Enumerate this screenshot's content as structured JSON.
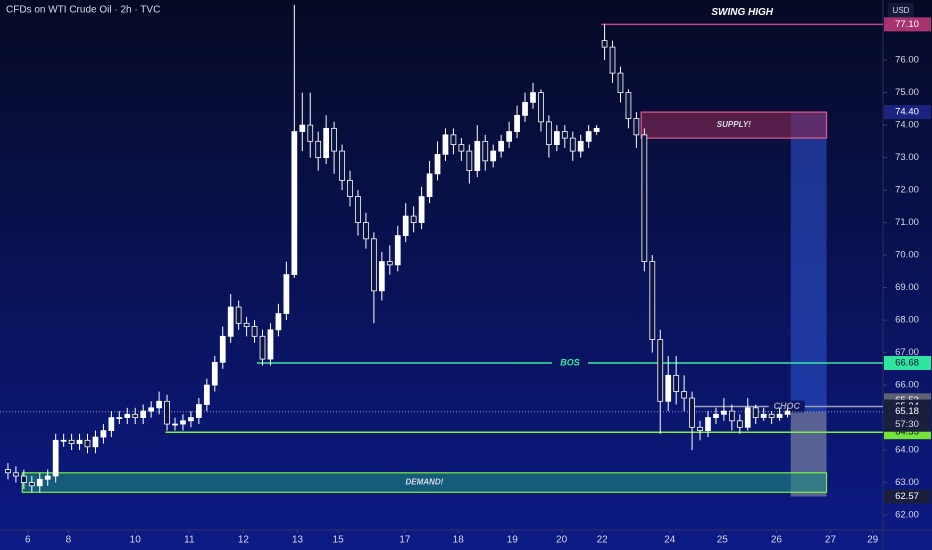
{
  "chart_data": {
    "type": "candlestick",
    "title": "CFDs on WTI Crude Oil · 2h · TVC",
    "currency": "USD",
    "up_color": "#ffffff",
    "down_color": "#0c1440",
    "open": [
      63.4,
      63.3,
      63.2,
      63.0,
      62.9,
      63.1,
      63.2,
      64.3,
      64.3,
      64.2,
      64.3,
      64.1,
      64.4,
      64.6,
      65.0,
      65.0,
      65.1,
      65.0,
      65.2,
      65.3,
      65.5,
      64.8,
      64.8,
      64.9,
      65.0,
      65.4,
      66.0,
      66.7,
      67.5,
      68.4,
      67.9,
      67.8,
      67.5,
      66.8,
      67.7,
      68.2,
      69.4,
      73.8,
      74.0,
      73.5,
      73.0,
      73.9,
      73.2,
      72.3,
      71.8,
      71.0,
      70.5,
      68.9,
      69.8,
      69.7,
      70.6,
      71.2,
      71.0,
      71.8,
      72.5,
      73.1,
      73.7,
      73.4,
      73.2,
      72.6,
      73.5,
      72.9,
      73.2,
      73.5,
      73.8,
      74.3,
      74.7,
      75.0,
      74.1,
      73.4,
      73.8,
      73.6,
      73.2,
      73.5,
      73.8,
      76.6,
      76.4,
      75.6,
      75.0,
      74.2,
      73.7,
      69.8,
      67.4,
      65.5,
      66.3,
      65.8,
      65.6,
      64.7,
      64.6,
      65.0,
      65.1,
      65.2,
      64.9,
      64.7,
      65.3,
      65.0,
      65.1,
      65.0,
      65.1
    ],
    "high": [
      63.6,
      63.5,
      63.4,
      63.2,
      63.3,
      63.4,
      64.5,
      64.5,
      64.5,
      64.5,
      64.5,
      64.6,
      64.8,
      65.2,
      65.2,
      65.3,
      65.3,
      65.4,
      65.5,
      65.8,
      65.7,
      65.0,
      65.1,
      65.2,
      65.6,
      66.2,
      66.9,
      67.8,
      68.8,
      68.6,
      68.1,
      68.0,
      67.7,
      67.9,
      68.5,
      69.8,
      77.7,
      75.0,
      75.0,
      73.8,
      74.3,
      74.1,
      73.4,
      72.6,
      72.0,
      71.3,
      70.7,
      70.1,
      70.3,
      70.9,
      71.6,
      71.5,
      72.1,
      72.9,
      73.5,
      73.9,
      73.9,
      73.6,
      73.4,
      74.0,
      73.7,
      73.4,
      73.7,
      74.1,
      74.6,
      75.0,
      75.3,
      75.1,
      74.3,
      74.0,
      74.0,
      73.8,
      73.7,
      74.0,
      74.0,
      77.1,
      76.6,
      75.8,
      75.1,
      74.4,
      73.9,
      70.0,
      67.7,
      66.9,
      66.9,
      66.3,
      65.8,
      64.9,
      65.2,
      65.3,
      65.6,
      65.4,
      65.1,
      65.6,
      65.4,
      65.3,
      65.2,
      65.3,
      65.3
    ],
    "low": [
      63.1,
      63.0,
      62.8,
      62.7,
      62.7,
      62.9,
      63.0,
      64.1,
      64.0,
      64.0,
      63.9,
      63.9,
      64.2,
      64.4,
      64.8,
      64.8,
      64.8,
      64.8,
      65.0,
      65.1,
      64.6,
      64.6,
      64.6,
      64.7,
      64.8,
      65.2,
      65.8,
      66.5,
      67.3,
      67.7,
      67.5,
      67.3,
      66.6,
      66.6,
      67.5,
      68.0,
      69.3,
      73.2,
      73.0,
      72.6,
      72.8,
      72.5,
      72.0,
      71.5,
      70.6,
      70.2,
      67.9,
      68.6,
      69.4,
      69.5,
      70.4,
      70.7,
      70.8,
      71.6,
      72.3,
      72.9,
      73.1,
      72.9,
      72.2,
      72.4,
      72.6,
      72.7,
      73.0,
      73.3,
      73.6,
      74.1,
      74.5,
      73.8,
      73.0,
      73.2,
      73.3,
      72.9,
      73.0,
      73.3,
      73.7,
      76.0,
      75.3,
      74.7,
      73.9,
      73.3,
      69.5,
      67.0,
      64.5,
      65.2,
      65.4,
      65.2,
      64.0,
      64.3,
      64.4,
      64.8,
      64.9,
      64.6,
      64.5,
      64.6,
      64.8,
      64.9,
      64.8,
      64.9,
      65.0
    ],
    "close": [
      63.3,
      63.2,
      63.0,
      62.9,
      63.1,
      63.2,
      64.3,
      64.3,
      64.2,
      64.3,
      64.1,
      64.4,
      64.6,
      65.0,
      65.0,
      65.1,
      65.0,
      65.2,
      65.3,
      65.5,
      64.8,
      64.8,
      64.9,
      65.0,
      65.4,
      66.0,
      66.7,
      67.5,
      68.4,
      67.9,
      67.8,
      67.5,
      66.8,
      67.7,
      68.2,
      69.4,
      73.8,
      74.0,
      73.5,
      73.0,
      73.9,
      73.2,
      72.3,
      71.8,
      71.0,
      70.5,
      68.9,
      69.8,
      69.7,
      70.6,
      71.2,
      71.0,
      71.8,
      72.5,
      73.1,
      73.7,
      73.4,
      73.2,
      72.6,
      73.5,
      72.9,
      73.2,
      73.5,
      73.8,
      74.3,
      74.7,
      75.0,
      74.1,
      73.4,
      73.8,
      73.6,
      73.2,
      73.5,
      73.8,
      73.9,
      76.4,
      75.6,
      75.0,
      74.2,
      73.7,
      69.8,
      67.4,
      65.5,
      66.3,
      65.8,
      65.6,
      64.7,
      64.6,
      65.0,
      65.1,
      65.2,
      64.9,
      64.7,
      65.3,
      65.0,
      65.1,
      65.0,
      65.1,
      65.2
    ],
    "xlim": [
      -1,
      110
    ],
    "xticks": [
      {
        "value": 2.5,
        "label": "6"
      },
      {
        "value": 7.6,
        "label": "8"
      },
      {
        "value": 16,
        "label": "10"
      },
      {
        "value": 22.8,
        "label": "11"
      },
      {
        "value": 29.6,
        "label": "12"
      },
      {
        "value": 36.4,
        "label": "13"
      },
      {
        "value": 41.5,
        "label": "15"
      },
      {
        "value": 49.9,
        "label": "17"
      },
      {
        "value": 56.6,
        "label": "18"
      },
      {
        "value": 63.4,
        "label": "19"
      },
      {
        "value": 69.6,
        "label": "20"
      },
      {
        "value": 74.7,
        "label": "22"
      },
      {
        "value": 83.2,
        "label": "24"
      },
      {
        "value": 89.8,
        "label": "25"
      },
      {
        "value": 96.6,
        "label": "26"
      },
      {
        "value": 103.4,
        "label": "27"
      },
      {
        "value": 108.7,
        "label": "29"
      }
    ],
    "ylim": [
      61.54,
      77.85
    ],
    "yticks": [
      {
        "value": 62,
        "label": "62.00"
      },
      {
        "value": 63,
        "label": "63.00"
      },
      {
        "value": 64,
        "label": "64.00"
      },
      {
        "value": 65,
        "label": "65.00"
      },
      {
        "value": 66,
        "label": "66.00"
      },
      {
        "value": 67,
        "label": "67.00"
      },
      {
        "value": 68,
        "label": "68.00"
      },
      {
        "value": 69,
        "label": "69.00"
      },
      {
        "value": 70,
        "label": "70.00"
      },
      {
        "value": 71,
        "label": "71.00"
      },
      {
        "value": 72,
        "label": "72.00"
      },
      {
        "value": 73,
        "label": "73.00"
      },
      {
        "value": 74,
        "label": "74.00"
      },
      {
        "value": 75,
        "label": "75.00"
      },
      {
        "value": 76,
        "label": "76.00"
      }
    ],
    "zones": [
      {
        "label": "SUPPLY!",
        "x": [
          79.6,
          102.9
        ],
        "top": 74.4,
        "bottom": 73.6,
        "color": "#8a2a55"
      },
      {
        "label": "DEMAND!",
        "x": [
          1.8,
          102.9
        ],
        "top": 63.3,
        "bottom": 62.7,
        "color": "#1c8a7a"
      }
    ],
    "levels": [
      {
        "label": "SWING HIGH",
        "value": 77.1,
        "x_start": 74.6,
        "color": "#c04a8a"
      },
      {
        "label": "BOS",
        "value": 66.68,
        "x_start": 31.3,
        "color": "#39e6a2"
      },
      {
        "label": "CHOC",
        "value": 65.34,
        "x_start": 85.8,
        "color": "#9aa0b8"
      },
      {
        "value": 64.55,
        "x_start": 19.8,
        "color": "#7cf03a"
      }
    ],
    "projection": {
      "x": [
        98.4,
        102.9
      ],
      "top": 74.4,
      "entry": 65.18,
      "bottom": 62.57
    },
    "last_price": 65.18,
    "countdown": "57:30",
    "price_tags": [
      {
        "value": 77.1,
        "label": "77.10",
        "color": "#a8336e"
      },
      {
        "value": 74.4,
        "label": "74.40",
        "color": "#1a237e"
      },
      {
        "value": 66.68,
        "label": "66.68",
        "color": "#2ee6a0"
      },
      {
        "value": 65.53,
        "label": "65.53",
        "color": "#5d6275"
      },
      {
        "value": 65.34,
        "label": "65.34",
        "color": "#1a1f3d"
      },
      {
        "value": 65.18,
        "label": "65.18",
        "color": "#1a1f3d"
      },
      {
        "value": 64.55,
        "label": "64.55",
        "color": "#76e33a"
      },
      {
        "value": 62.57,
        "label": "62.57",
        "color": "#1a1f3d"
      }
    ]
  }
}
